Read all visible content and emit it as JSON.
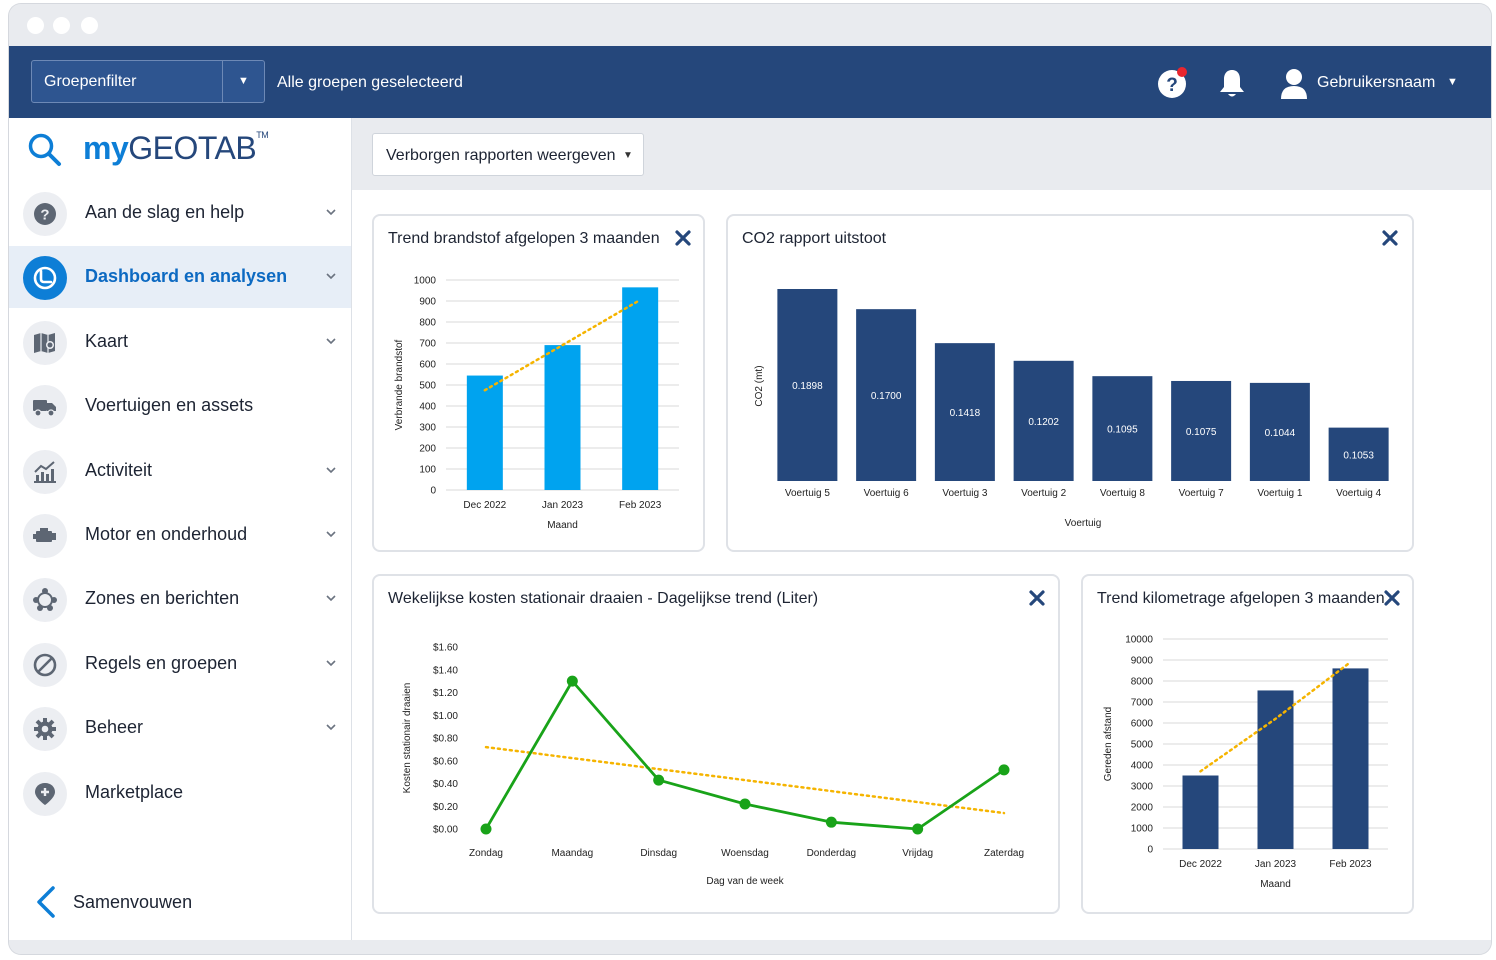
{
  "topnav": {
    "group_filter_label": "Groepenfilter",
    "group_selection": "Alle groepen geselecteerd",
    "username": "Gebruikersnaam"
  },
  "logo": {
    "my": "my",
    "geotab": "GEOTAB",
    "tm": "TM"
  },
  "sidebar": {
    "items": [
      {
        "label": "Aan de slag en help",
        "icon": "help-circle-icon",
        "expandable": true,
        "active": false
      },
      {
        "label": "Dashboard en analysen",
        "icon": "dashboard-gauge-icon",
        "expandable": true,
        "active": true
      },
      {
        "label": "Kaart",
        "icon": "map-icon",
        "expandable": true,
        "active": false
      },
      {
        "label": "Voertuigen en assets",
        "icon": "truck-icon",
        "expandable": false,
        "active": false
      },
      {
        "label": "Activiteit",
        "icon": "activity-chart-icon",
        "expandable": true,
        "active": false
      },
      {
        "label": "Motor en onderhoud",
        "icon": "engine-icon",
        "expandable": true,
        "active": false
      },
      {
        "label": "Zones en berichten",
        "icon": "zones-network-icon",
        "expandable": true,
        "active": false
      },
      {
        "label": "Regels en groepen",
        "icon": "rules-block-icon",
        "expandable": true,
        "active": false
      },
      {
        "label": "Beheer",
        "icon": "gear-icon",
        "expandable": true,
        "active": false
      },
      {
        "label": "Marketplace",
        "icon": "marketplace-pin-icon",
        "expandable": false,
        "active": false
      }
    ],
    "collapse_label": "Samenvouwen"
  },
  "toolbar": {
    "hidden_reports_label": "Verborgen rapporten weergeven"
  },
  "colors": {
    "navy": "#25477b",
    "bar_light_blue": "#00a3ef",
    "line_green": "#19a319",
    "trend_orange": "#f5b400"
  },
  "chart_data": [
    {
      "id": "fuel",
      "type": "bar",
      "title": "Trend brandstof afgelopen 3 maanden",
      "categories": [
        "Dec 2022",
        "Jan 2023",
        "Feb 2023"
      ],
      "values": [
        545,
        690,
        965
      ],
      "ylim": [
        0,
        1000
      ],
      "yticks": [
        0,
        100,
        200,
        300,
        400,
        500,
        600,
        700,
        800,
        900,
        1000
      ],
      "ytick_labels": [
        "0",
        "100",
        "200",
        "300",
        "400",
        "500",
        "600",
        "700",
        "800",
        "900",
        "1000"
      ],
      "xlabel": "Maand",
      "ylabel": "Verbrande brandstof",
      "trendline": [
        475,
        690,
        905
      ]
    },
    {
      "id": "co2",
      "type": "bar",
      "title": "CO2 rapport uitstoot",
      "categories": [
        "Voertuig 5",
        "Voertuig 6",
        "Voertuig 3",
        "Voertuig 2",
        "Voertuig 8",
        "Voertuig 7",
        "Voertuig 1",
        "Voertuig 4"
      ],
      "values": [
        0.1898,
        0.17,
        0.1418,
        0.1202,
        0.1095,
        0.1075,
        0.1044,
        0.1053
      ],
      "data_labels": [
        "0.1898",
        "0.1700",
        "0.1418",
        "0.1202",
        "0.1095",
        "0.1075",
        "0.1044",
        "0.1053"
      ],
      "bar_heights_relative": [
        1.0,
        0.895,
        0.718,
        0.626,
        0.546,
        0.521,
        0.511,
        0.278
      ],
      "xlabel": "Voertuig",
      "ylabel": "CO2 (mt)"
    },
    {
      "id": "idle",
      "type": "line",
      "title": "Wekelijkse kosten stationair draaien - Dagelijkse trend (Liter)",
      "categories": [
        "Zondag",
        "Maandag",
        "Dinsdag",
        "Woensdag",
        "Donderdag",
        "Vrijdag",
        "Zaterdag"
      ],
      "values": [
        0.0,
        1.3,
        0.43,
        0.22,
        0.06,
        0.0,
        0.52
      ],
      "ylim": [
        0,
        1.6
      ],
      "yticks": [
        0,
        0.2,
        0.4,
        0.6,
        0.8,
        1.0,
        1.2,
        1.4,
        1.6
      ],
      "ytick_labels": [
        "$0.00",
        "$0.20",
        "$0.40",
        "$0.60",
        "$0.80",
        "$1.00",
        "$1.20",
        "$1.40",
        "$1.60"
      ],
      "xlabel": "Dag van de week",
      "ylabel": "Kosten stationair draaien",
      "trendline": [
        0.72,
        0.14
      ]
    },
    {
      "id": "mileage",
      "type": "bar",
      "title": "Trend kilometrage afgelopen 3 maanden",
      "categories": [
        "Dec 2022",
        "Jan 2023",
        "Feb 2023"
      ],
      "values": [
        3500,
        7550,
        8600
      ],
      "ylim": [
        0,
        10000
      ],
      "yticks": [
        0,
        1000,
        2000,
        3000,
        4000,
        5000,
        6000,
        7000,
        8000,
        9000,
        10000
      ],
      "ytick_labels": [
        "0",
        "1000",
        "2000",
        "3000",
        "4000",
        "5000",
        "6000",
        "7000",
        "8000",
        "9000",
        "10000"
      ],
      "xlabel": "Maand",
      "ylabel": "Gereden afstand",
      "trendline": [
        3700,
        6200,
        8900
      ]
    }
  ]
}
